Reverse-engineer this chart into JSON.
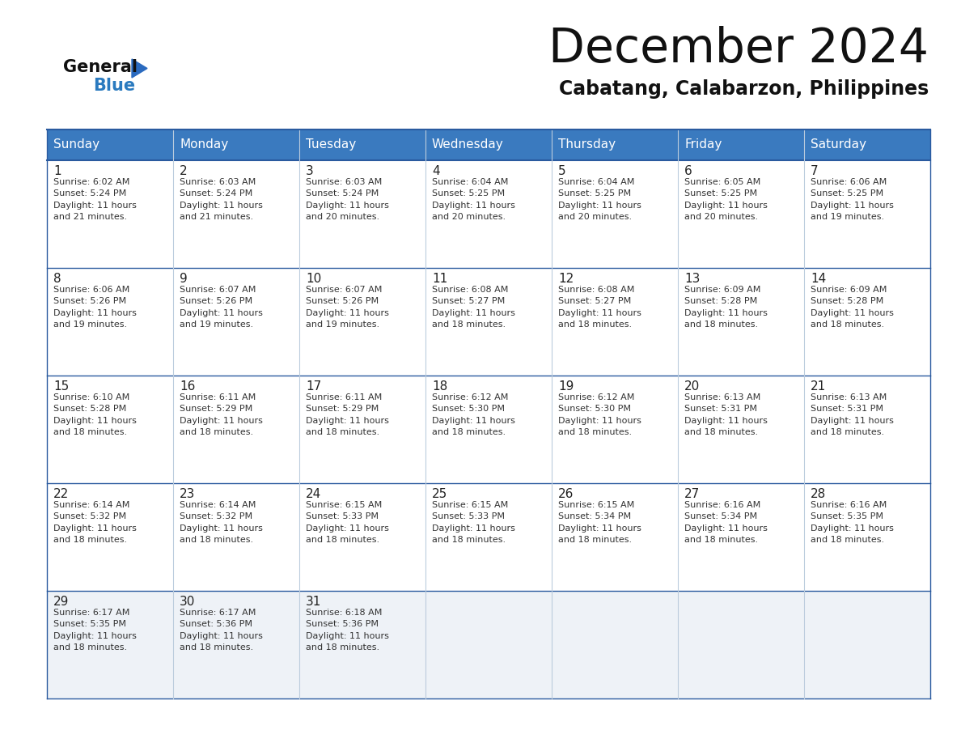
{
  "title": "December 2024",
  "subtitle": "Cabatang, Calabarzon, Philippines",
  "header_bg_color": "#3a7abf",
  "header_text_color": "#ffffff",
  "cell_bg_white": "#ffffff",
  "cell_bg_gray": "#f0f4f8",
  "border_color": "#2a5a9f",
  "sep_color": "#bbccdd",
  "day_names": [
    "Sunday",
    "Monday",
    "Tuesday",
    "Wednesday",
    "Thursday",
    "Friday",
    "Saturday"
  ],
  "weeks": [
    [
      {
        "day": 1,
        "sunrise": "6:02 AM",
        "sunset": "5:24 PM",
        "daylight_hours": 11,
        "daylight_min": 21
      },
      {
        "day": 2,
        "sunrise": "6:03 AM",
        "sunset": "5:24 PM",
        "daylight_hours": 11,
        "daylight_min": 21
      },
      {
        "day": 3,
        "sunrise": "6:03 AM",
        "sunset": "5:24 PM",
        "daylight_hours": 11,
        "daylight_min": 20
      },
      {
        "day": 4,
        "sunrise": "6:04 AM",
        "sunset": "5:25 PM",
        "daylight_hours": 11,
        "daylight_min": 20
      },
      {
        "day": 5,
        "sunrise": "6:04 AM",
        "sunset": "5:25 PM",
        "daylight_hours": 11,
        "daylight_min": 20
      },
      {
        "day": 6,
        "sunrise": "6:05 AM",
        "sunset": "5:25 PM",
        "daylight_hours": 11,
        "daylight_min": 20
      },
      {
        "day": 7,
        "sunrise": "6:06 AM",
        "sunset": "5:25 PM",
        "daylight_hours": 11,
        "daylight_min": 19
      }
    ],
    [
      {
        "day": 8,
        "sunrise": "6:06 AM",
        "sunset": "5:26 PM",
        "daylight_hours": 11,
        "daylight_min": 19
      },
      {
        "day": 9,
        "sunrise": "6:07 AM",
        "sunset": "5:26 PM",
        "daylight_hours": 11,
        "daylight_min": 19
      },
      {
        "day": 10,
        "sunrise": "6:07 AM",
        "sunset": "5:26 PM",
        "daylight_hours": 11,
        "daylight_min": 19
      },
      {
        "day": 11,
        "sunrise": "6:08 AM",
        "sunset": "5:27 PM",
        "daylight_hours": 11,
        "daylight_min": 18
      },
      {
        "day": 12,
        "sunrise": "6:08 AM",
        "sunset": "5:27 PM",
        "daylight_hours": 11,
        "daylight_min": 18
      },
      {
        "day": 13,
        "sunrise": "6:09 AM",
        "sunset": "5:28 PM",
        "daylight_hours": 11,
        "daylight_min": 18
      },
      {
        "day": 14,
        "sunrise": "6:09 AM",
        "sunset": "5:28 PM",
        "daylight_hours": 11,
        "daylight_min": 18
      }
    ],
    [
      {
        "day": 15,
        "sunrise": "6:10 AM",
        "sunset": "5:28 PM",
        "daylight_hours": 11,
        "daylight_min": 18
      },
      {
        "day": 16,
        "sunrise": "6:11 AM",
        "sunset": "5:29 PM",
        "daylight_hours": 11,
        "daylight_min": 18
      },
      {
        "day": 17,
        "sunrise": "6:11 AM",
        "sunset": "5:29 PM",
        "daylight_hours": 11,
        "daylight_min": 18
      },
      {
        "day": 18,
        "sunrise": "6:12 AM",
        "sunset": "5:30 PM",
        "daylight_hours": 11,
        "daylight_min": 18
      },
      {
        "day": 19,
        "sunrise": "6:12 AM",
        "sunset": "5:30 PM",
        "daylight_hours": 11,
        "daylight_min": 18
      },
      {
        "day": 20,
        "sunrise": "6:13 AM",
        "sunset": "5:31 PM",
        "daylight_hours": 11,
        "daylight_min": 18
      },
      {
        "day": 21,
        "sunrise": "6:13 AM",
        "sunset": "5:31 PM",
        "daylight_hours": 11,
        "daylight_min": 18
      }
    ],
    [
      {
        "day": 22,
        "sunrise": "6:14 AM",
        "sunset": "5:32 PM",
        "daylight_hours": 11,
        "daylight_min": 18
      },
      {
        "day": 23,
        "sunrise": "6:14 AM",
        "sunset": "5:32 PM",
        "daylight_hours": 11,
        "daylight_min": 18
      },
      {
        "day": 24,
        "sunrise": "6:15 AM",
        "sunset": "5:33 PM",
        "daylight_hours": 11,
        "daylight_min": 18
      },
      {
        "day": 25,
        "sunrise": "6:15 AM",
        "sunset": "5:33 PM",
        "daylight_hours": 11,
        "daylight_min": 18
      },
      {
        "day": 26,
        "sunrise": "6:15 AM",
        "sunset": "5:34 PM",
        "daylight_hours": 11,
        "daylight_min": 18
      },
      {
        "day": 27,
        "sunrise": "6:16 AM",
        "sunset": "5:34 PM",
        "daylight_hours": 11,
        "daylight_min": 18
      },
      {
        "day": 28,
        "sunrise": "6:16 AM",
        "sunset": "5:35 PM",
        "daylight_hours": 11,
        "daylight_min": 18
      }
    ],
    [
      {
        "day": 29,
        "sunrise": "6:17 AM",
        "sunset": "5:35 PM",
        "daylight_hours": 11,
        "daylight_min": 18
      },
      {
        "day": 30,
        "sunrise": "6:17 AM",
        "sunset": "5:36 PM",
        "daylight_hours": 11,
        "daylight_min": 18
      },
      {
        "day": 31,
        "sunrise": "6:18 AM",
        "sunset": "5:36 PM",
        "daylight_hours": 11,
        "daylight_min": 18
      },
      null,
      null,
      null,
      null
    ]
  ]
}
